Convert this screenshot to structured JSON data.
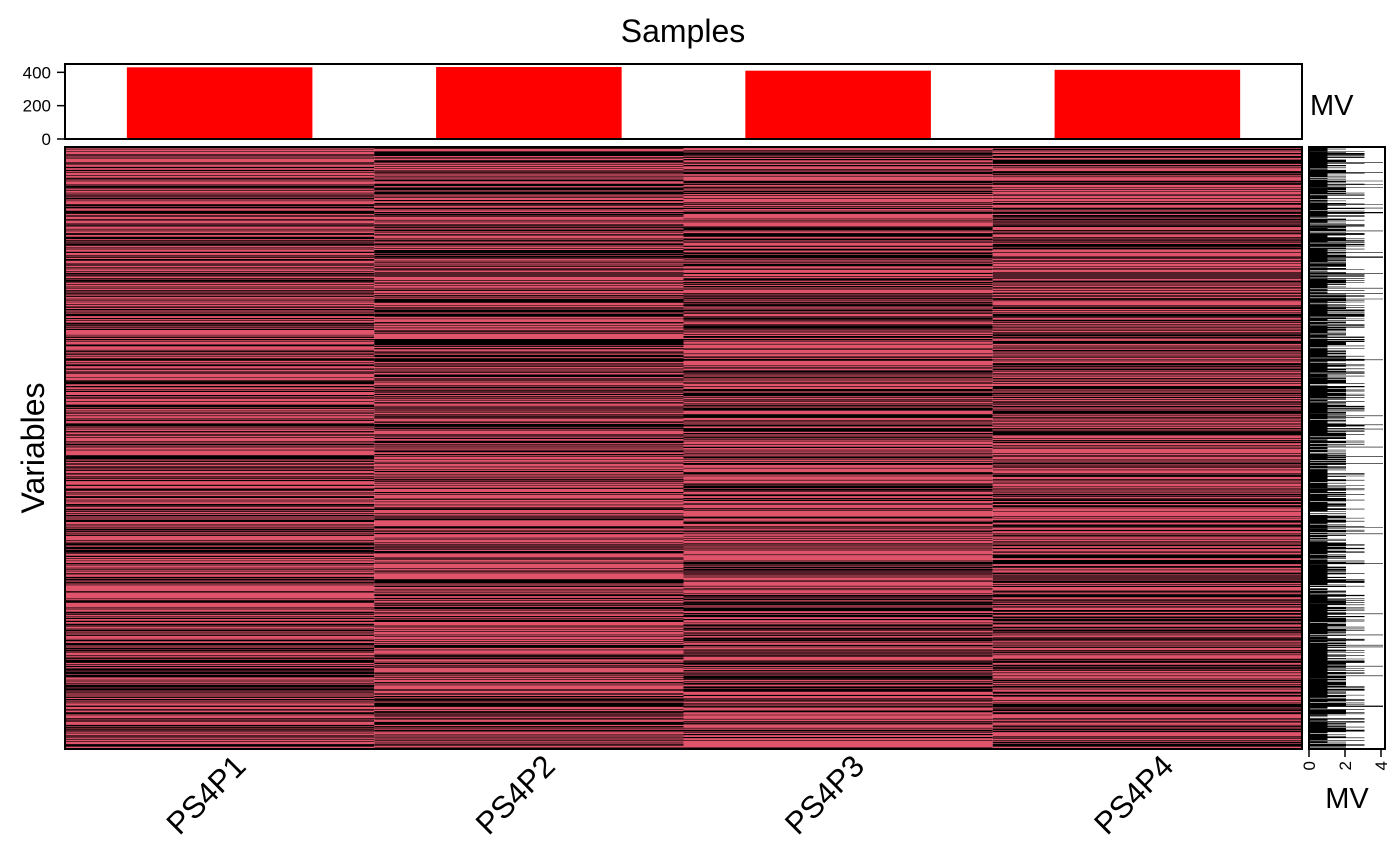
{
  "chart_data": {
    "type": "heatmap",
    "title": "Samples",
    "ylabel": "Variables",
    "samples": [
      "PS4P1",
      "PS4P2",
      "PS4P3",
      "PS4P4"
    ],
    "top_bar": {
      "type": "bar",
      "label": "MV",
      "values": [
        430,
        432,
        410,
        415
      ],
      "ylim": [
        0,
        450
      ],
      "ticks": [
        "400",
        "200",
        "0"
      ],
      "color": "#ff0000"
    },
    "side_bar": {
      "type": "bar",
      "orientation": "horizontal",
      "label": "MV",
      "xlim": [
        0,
        4
      ],
      "ticks": [
        "0",
        "2",
        "4"
      ],
      "color": "#000000"
    },
    "colors": {
      "present": "#df536b",
      "missing": "#000000",
      "frame": "#000000"
    },
    "approx_variable_rows": 1000,
    "legend": "none",
    "grid": false
  }
}
